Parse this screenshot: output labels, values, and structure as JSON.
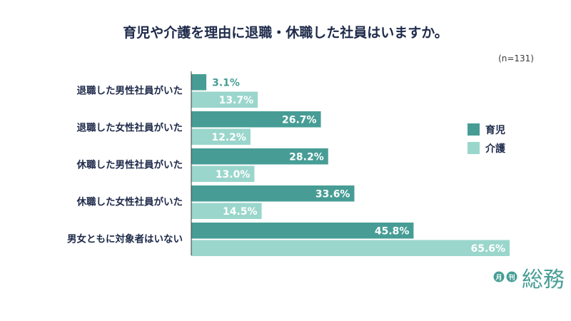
{
  "chart_data": {
    "type": "bar",
    "orientation": "horizontal",
    "title": "育児や介護を理由に退職・休職した社員はいますか。",
    "note": "(n=131)",
    "categories": [
      "退職した男性社員がいた",
      "退職した女性社員がいた",
      "休職した男性社員がいた",
      "休職した女性社員がいた",
      "男女ともに対象者はいない"
    ],
    "series": [
      {
        "name": "育児",
        "color": "#479d95",
        "values": [
          3.1,
          26.7,
          28.2,
          33.6,
          45.8
        ],
        "labels": [
          "3.1%",
          "26.7%",
          "28.2%",
          "33.6%",
          "45.8%"
        ]
      },
      {
        "name": "介護",
        "color": "#9ad6cc",
        "values": [
          13.7,
          12.2,
          13.0,
          14.5,
          65.6
        ],
        "labels": [
          "13.7%",
          "12.2%",
          "13.0%",
          "14.5%",
          "65.6%"
        ]
      }
    ],
    "value_unit": "%",
    "legend_position": "right",
    "grid": false
  },
  "logo": {
    "badge_1": "月",
    "badge_2": "刊",
    "name": "総務"
  },
  "colors": {
    "title": "#1e2a4a",
    "category_text": "#1e2a4a",
    "axis": "#3a3a3a",
    "logo": "#479d95"
  }
}
